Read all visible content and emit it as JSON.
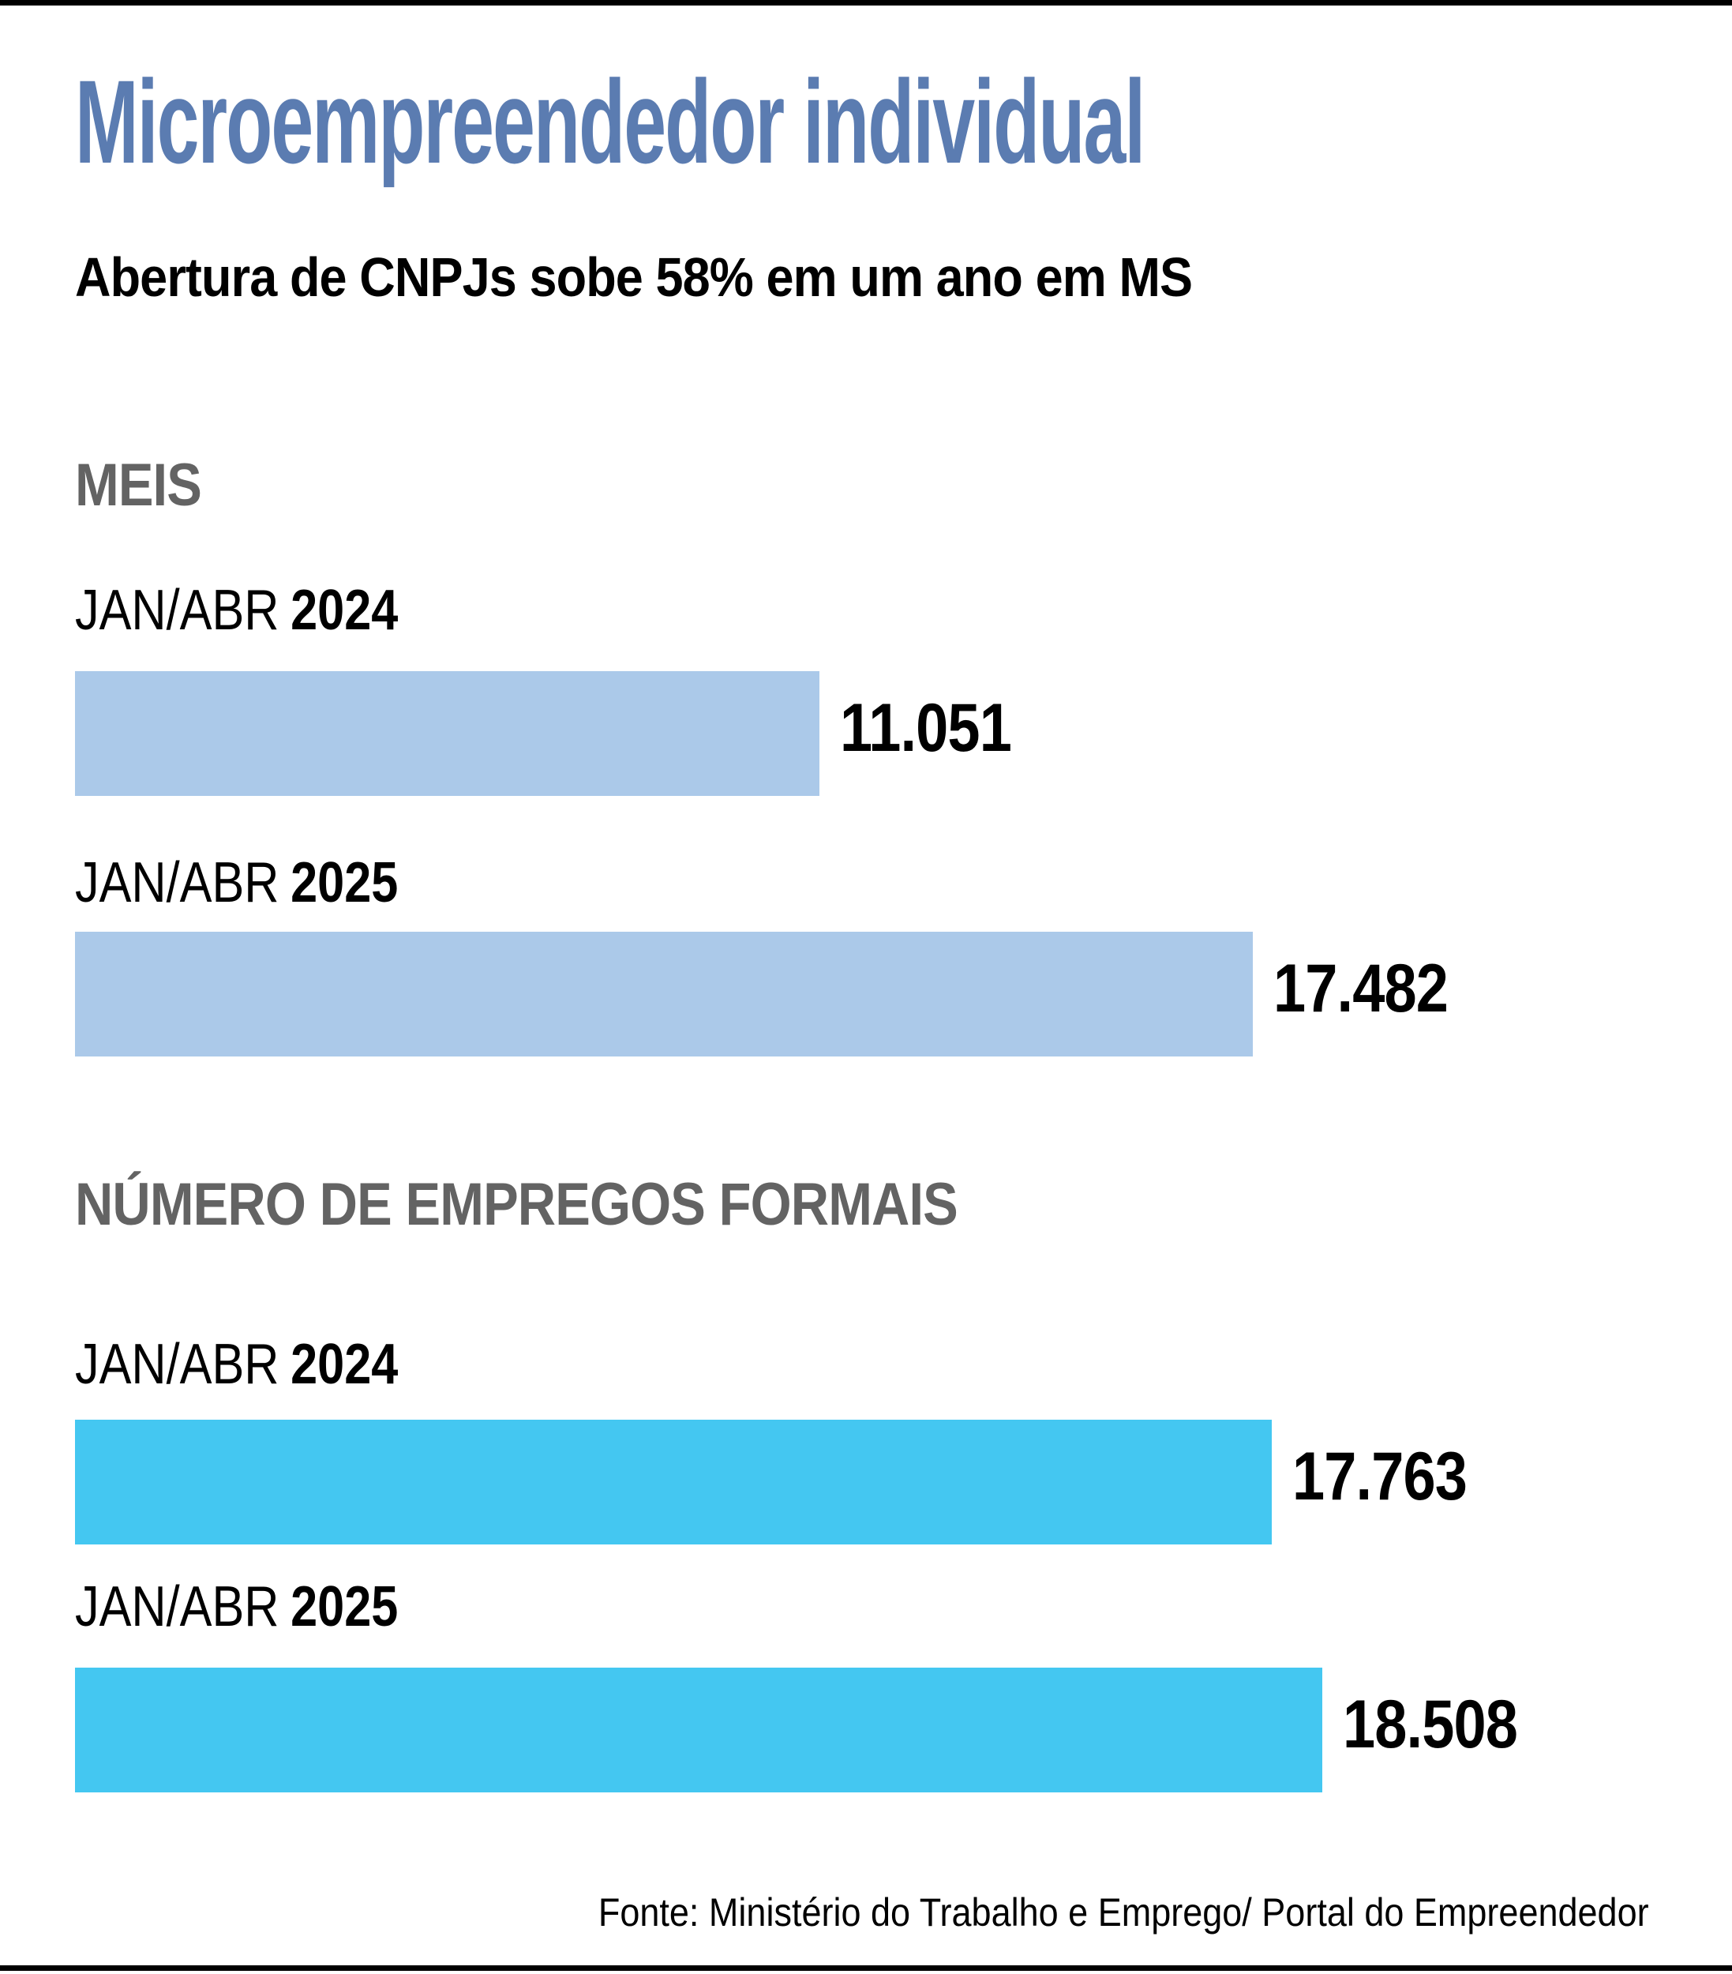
{
  "page": {
    "title": "Microempreendedor individual",
    "subtitle": "Abertura de CNPJs sobe 58% em um ano em MS",
    "source": "Fonte: Ministério do Trabalho e Emprego/ Portal do Empreendedor"
  },
  "colors": {
    "title_blue": "#5b7cb1",
    "section_gray": "#636363",
    "meis_bar_blue": "#abc9e9",
    "jobs_bar_cyan": "#44c7f1",
    "text_black": "#000000",
    "rule_black": "#000000"
  },
  "chart_data": [
    {
      "type": "bar",
      "orientation": "horizontal",
      "title": "MEIS",
      "categories": [
        "JAN/ABR 2024",
        "JAN/ABR 2025"
      ],
      "values": [
        11051,
        17482
      ],
      "value_labels": [
        "11.051",
        "17.482"
      ],
      "bar_color": "#abc9e9",
      "xlim": [
        0,
        18508
      ],
      "grid": false,
      "legend": false,
      "rows": [
        {
          "period": "JAN/ABR",
          "year": "2024",
          "value": 11051,
          "label": "11.051"
        },
        {
          "period": "JAN/ABR",
          "year": "2025",
          "value": 17482,
          "label": "17.482"
        }
      ]
    },
    {
      "type": "bar",
      "orientation": "horizontal",
      "title": "NÚMERO DE EMPREGOS FORMAIS",
      "categories": [
        "JAN/ABR 2024",
        "JAN/ABR 2025"
      ],
      "values": [
        17763,
        18508
      ],
      "value_labels": [
        "17.763",
        "18.508"
      ],
      "bar_color": "#44c7f1",
      "xlim": [
        0,
        18508
      ],
      "grid": false,
      "legend": false,
      "rows": [
        {
          "period": "JAN/ABR",
          "year": "2024",
          "value": 17763,
          "label": "17.763"
        },
        {
          "period": "JAN/ABR",
          "year": "2025",
          "value": 18508,
          "label": "18.508"
        }
      ]
    }
  ]
}
